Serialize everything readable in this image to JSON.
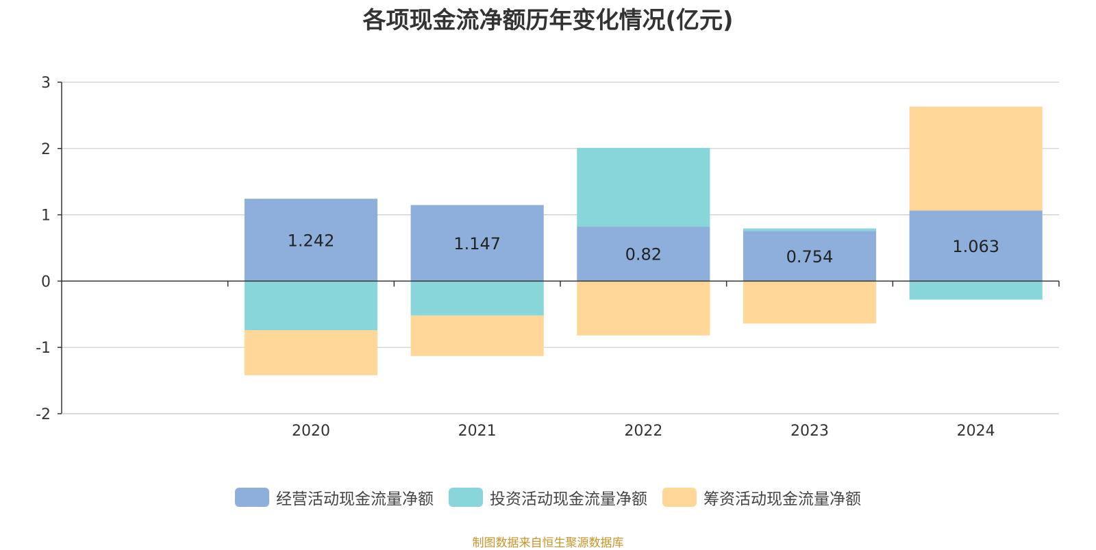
{
  "chart_data": {
    "type": "bar",
    "stacked": true,
    "title": "各项现金流净额历年变化情况(亿元)",
    "categories": [
      "",
      "2020",
      "2021",
      "2022",
      "2023",
      "2024"
    ],
    "series": [
      {
        "name": "经营活动现金流量净额",
        "color": "#8eaedb",
        "values": [
          null,
          1.242,
          1.147,
          0.82,
          0.754,
          1.063
        ]
      },
      {
        "name": "投资活动现金流量净额",
        "color": "#88d6d9",
        "values": [
          null,
          -0.74,
          -0.52,
          1.19,
          0.04,
          -0.28
        ]
      },
      {
        "name": "筹资活动现金流量净额",
        "color": "#ffd899",
        "values": [
          null,
          -0.68,
          -0.61,
          -0.82,
          -0.64,
          1.57
        ]
      }
    ],
    "data_labels": [
      "",
      "1.242",
      "1.147",
      "0.82",
      "0.754",
      "1.063"
    ],
    "yticks": [
      3,
      2,
      1,
      0,
      -1,
      -2
    ],
    "ylim": [
      -2,
      3
    ],
    "grid": true,
    "legend": "bottom-center"
  },
  "source_note": "制图数据来自恒生聚源数据库"
}
